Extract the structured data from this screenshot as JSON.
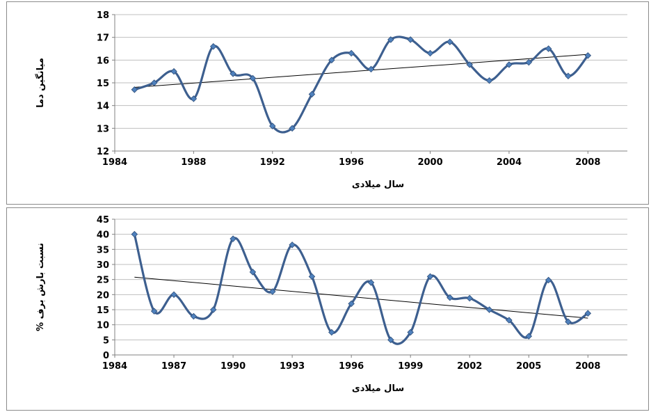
{
  "colors": {
    "series": "#3d5f8f",
    "marker": "#4f81bd",
    "trend": "#000000",
    "grid": "#bfbfbf"
  },
  "chart_data": [
    {
      "type": "line",
      "smooth": true,
      "trendline": true,
      "xlabel": "سال میلادی",
      "ylabel": "میانگین دما",
      "xlim": [
        1984,
        2010
      ],
      "ylim": [
        12,
        18
      ],
      "xticks": [
        1984,
        1988,
        1992,
        1996,
        2000,
        2004,
        2008
      ],
      "yticks": [
        12,
        13,
        14,
        15,
        16,
        17,
        18
      ],
      "grid": true,
      "x": [
        1985,
        1986,
        1987,
        1988,
        1989,
        1990,
        1991,
        1992,
        1993,
        1994,
        1995,
        1996,
        1997,
        1998,
        1999,
        2000,
        2001,
        2002,
        2003,
        2004,
        2005,
        2006,
        2007,
        2008
      ],
      "y": [
        14.7,
        15.0,
        15.5,
        14.3,
        16.6,
        15.4,
        15.2,
        13.1,
        13.0,
        14.5,
        16.0,
        16.3,
        15.6,
        16.9,
        16.9,
        16.3,
        16.8,
        15.8,
        15.1,
        15.8,
        15.9,
        16.5,
        15.3,
        16.2
      ],
      "trend": {
        "x": [
          1985,
          2008
        ],
        "y": [
          14.8,
          16.25
        ]
      }
    },
    {
      "type": "line",
      "smooth": true,
      "trendline": true,
      "xlabel": "سال میلادی",
      "ylabel": "% نسبت بارش برف",
      "xlim": [
        1984,
        2010
      ],
      "ylim": [
        0,
        45
      ],
      "xticks": [
        1984,
        1987,
        1990,
        1993,
        1996,
        1999,
        2002,
        2005,
        2008
      ],
      "yticks": [
        0,
        5,
        10,
        15,
        20,
        25,
        30,
        35,
        40,
        45
      ],
      "grid": true,
      "x": [
        1985,
        1986,
        1987,
        1988,
        1989,
        1990,
        1991,
        1992,
        1993,
        1994,
        1995,
        1996,
        1997,
        1998,
        1999,
        2000,
        2001,
        2002,
        2003,
        2004,
        2005,
        2006,
        2007,
        2008
      ],
      "y": [
        40,
        14.5,
        20,
        12.8,
        15,
        38.5,
        27.5,
        21,
        36.5,
        26,
        7.5,
        17,
        24,
        5,
        7.5,
        26,
        19,
        18.8,
        15,
        11.5,
        6.2,
        24.8,
        11,
        13.8
      ],
      "trend": {
        "x": [
          1985,
          2008
        ],
        "y": [
          25.8,
          12.2
        ]
      }
    }
  ]
}
